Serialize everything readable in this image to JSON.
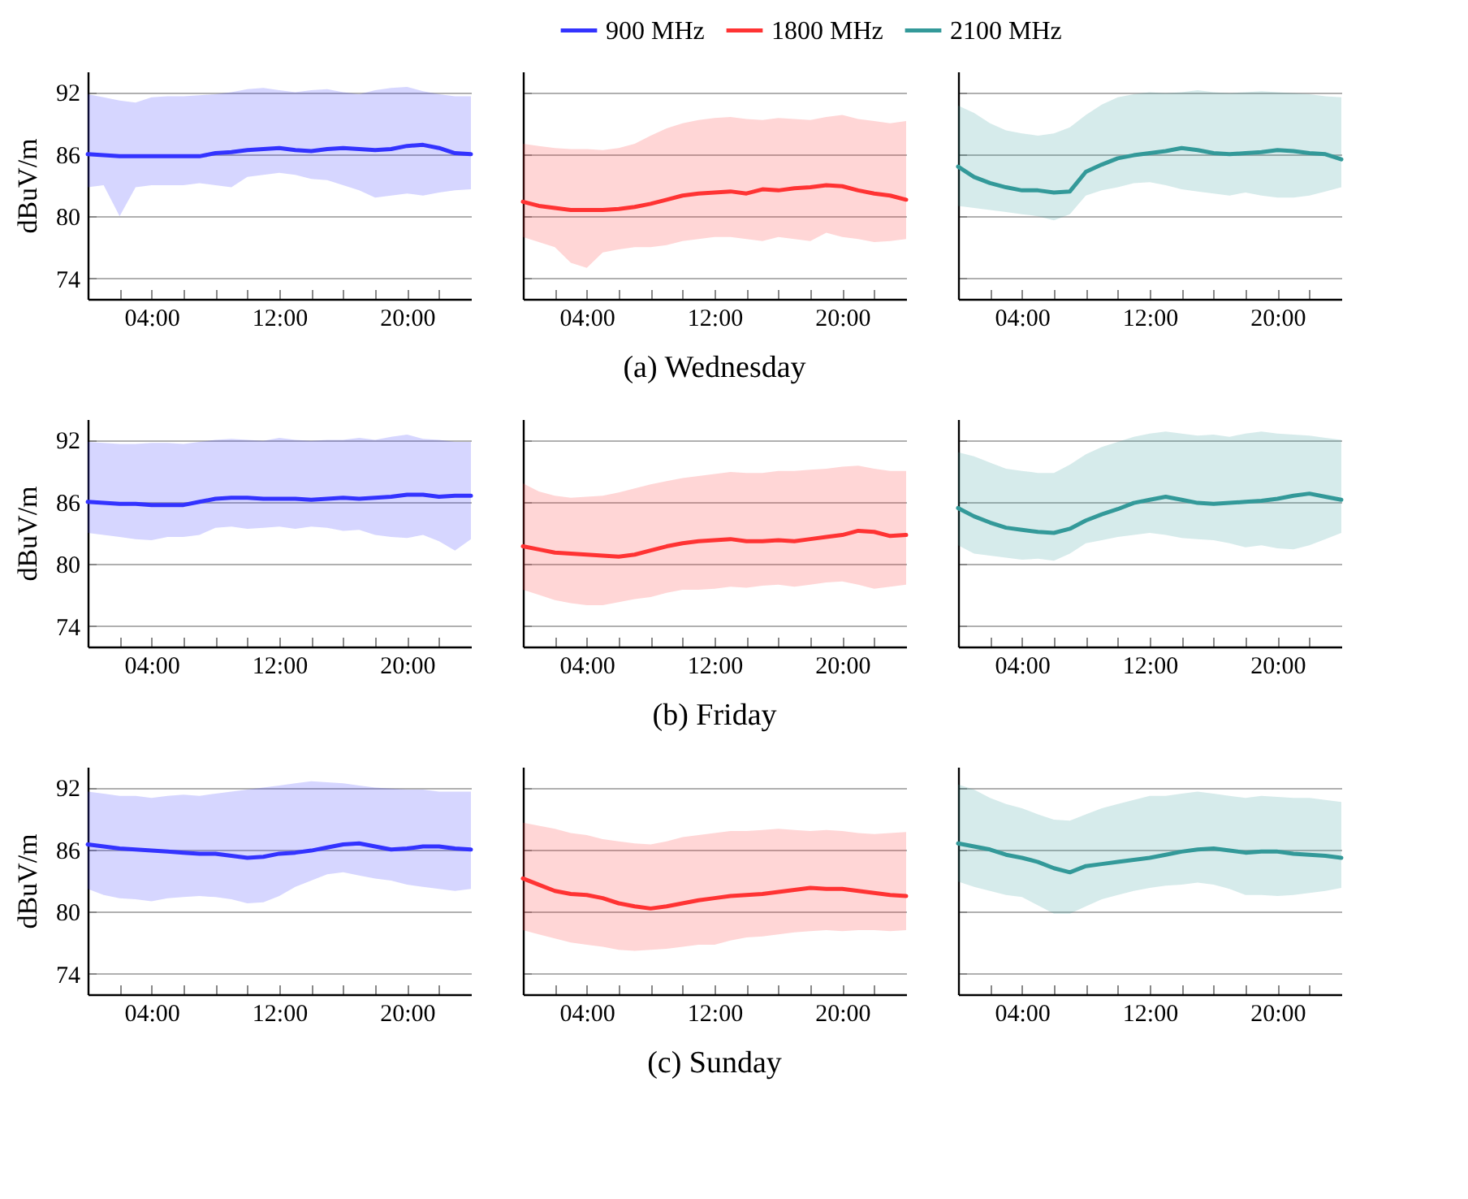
{
  "chart_data": [
    {
      "type": "line",
      "ylabel": "dBuV/m",
      "x": [
        0,
        1,
        2,
        3,
        4,
        5,
        6,
        7,
        8,
        9,
        10,
        11,
        12,
        13,
        14,
        15,
        16,
        17,
        18,
        19,
        20,
        21,
        22,
        23,
        24
      ],
      "xlim": [
        0,
        24
      ],
      "ylim": [
        72,
        94
      ],
      "yticks": [
        74,
        80,
        86,
        92
      ],
      "xticks": [
        {
          "value": 2,
          "label": null
        },
        {
          "value": 4,
          "label": "04:00"
        },
        {
          "value": 6,
          "label": null
        },
        {
          "value": 8,
          "label": null
        },
        {
          "value": 10,
          "label": null
        },
        {
          "value": 12,
          "label": "12:00"
        },
        {
          "value": 14,
          "label": null
        },
        {
          "value": 16,
          "label": null
        },
        {
          "value": 18,
          "label": null
        },
        {
          "value": 20,
          "label": "20:00"
        },
        {
          "value": 22,
          "label": null
        }
      ],
      "grid": "y",
      "series": [
        {
          "name": "900 MHz",
          "color": "#3333ff",
          "values": [
            86,
            85.9,
            85.8,
            85.8,
            85.8,
            85.8,
            85.8,
            85.8,
            86.1,
            86.2,
            86.4,
            86.5,
            86.6,
            86.4,
            86.3,
            86.5,
            86.6,
            86.5,
            86.4,
            86.5,
            86.8,
            86.9,
            86.6,
            86.1,
            86
          ],
          "upper": [
            91.8,
            91.5,
            91.2,
            91,
            91.5,
            91.6,
            91.6,
            91.7,
            91.8,
            92,
            92.3,
            92.4,
            92.2,
            92,
            92.2,
            92.3,
            92,
            91.8,
            92.2,
            92.4,
            92.5,
            92.1,
            91.8,
            91.6,
            91.6
          ],
          "lower": [
            82.8,
            83,
            80,
            82.8,
            83,
            83,
            83,
            83.2,
            83,
            82.8,
            83.8,
            84,
            84.2,
            84,
            83.6,
            83.5,
            83,
            82.5,
            81.8,
            82,
            82.2,
            82,
            82.3,
            82.5,
            82.6
          ]
        }
      ]
    },
    {
      "type": "line",
      "title": "(a) Wednesday",
      "legend": "top",
      "tick_labels": "x",
      "x": [
        0,
        1,
        2,
        3,
        4,
        5,
        6,
        7,
        8,
        9,
        10,
        11,
        12,
        13,
        14,
        15,
        16,
        17,
        18,
        19,
        20,
        21,
        22,
        23,
        24
      ],
      "xlim": [
        0,
        24
      ],
      "ylim": [
        72,
        94
      ],
      "yticks": [
        74,
        80,
        86,
        92
      ],
      "xticks": [
        {
          "value": 2,
          "label": null
        },
        {
          "value": 4,
          "label": "04:00"
        },
        {
          "value": 6,
          "label": null
        },
        {
          "value": 8,
          "label": null
        },
        {
          "value": 10,
          "label": null
        },
        {
          "value": 12,
          "label": "12:00"
        },
        {
          "value": 14,
          "label": null
        },
        {
          "value": 16,
          "label": null
        },
        {
          "value": 18,
          "label": null
        },
        {
          "value": 20,
          "label": "20:00"
        },
        {
          "value": 22,
          "label": null
        }
      ],
      "grid": "y",
      "series": [
        {
          "name": "1800 MHz",
          "color": "#ff3333",
          "values": [
            81.4,
            81,
            80.8,
            80.6,
            80.6,
            80.6,
            80.7,
            80.9,
            81.2,
            81.6,
            82,
            82.2,
            82.3,
            82.4,
            82.2,
            82.6,
            82.5,
            82.7,
            82.8,
            83,
            82.9,
            82.5,
            82.2,
            82,
            81.6
          ],
          "upper": [
            87,
            86.8,
            86.6,
            86.5,
            86.5,
            86.4,
            86.6,
            87,
            87.8,
            88.5,
            89,
            89.3,
            89.5,
            89.6,
            89.4,
            89.3,
            89.5,
            89.4,
            89.3,
            89.6,
            89.8,
            89.4,
            89.2,
            89,
            89.2
          ],
          "lower": [
            78,
            77.5,
            77,
            75.5,
            75,
            76.5,
            76.8,
            77,
            77,
            77.2,
            77.6,
            77.8,
            78,
            78,
            77.8,
            77.6,
            78,
            77.8,
            77.6,
            78.4,
            78,
            77.8,
            77.5,
            77.6,
            77.8
          ]
        }
      ]
    },
    {
      "type": "line",
      "tick_labels": "x",
      "x": [
        0,
        1,
        2,
        3,
        4,
        5,
        6,
        7,
        8,
        9,
        10,
        11,
        12,
        13,
        14,
        15,
        16,
        17,
        18,
        19,
        20,
        21,
        22,
        23,
        24
      ],
      "xlim": [
        0,
        24
      ],
      "ylim": [
        72,
        94
      ],
      "yticks": [
        74,
        80,
        86,
        92
      ],
      "xticks": [
        {
          "value": 2,
          "label": null
        },
        {
          "value": 4,
          "label": "04:00"
        },
        {
          "value": 6,
          "label": null
        },
        {
          "value": 8,
          "label": null
        },
        {
          "value": 10,
          "label": null
        },
        {
          "value": 12,
          "label": "12:00"
        },
        {
          "value": 14,
          "label": null
        },
        {
          "value": 16,
          "label": null
        },
        {
          "value": 18,
          "label": null
        },
        {
          "value": 20,
          "label": "20:00"
        },
        {
          "value": 22,
          "label": null
        }
      ],
      "grid": "y",
      "series": [
        {
          "name": "2100 MHz",
          "color": "#339999",
          "values": [
            84.8,
            83.8,
            83.2,
            82.8,
            82.5,
            82.5,
            82.3,
            82.4,
            84.3,
            85,
            85.6,
            85.9,
            86.1,
            86.3,
            86.6,
            86.4,
            86.1,
            86,
            86.1,
            86.2,
            86.4,
            86.3,
            86.1,
            86,
            85.5
          ],
          "upper": [
            90.7,
            90,
            89,
            88.3,
            88,
            87.8,
            88,
            88.6,
            89.8,
            90.8,
            91.5,
            91.8,
            92,
            91.9,
            92,
            92.2,
            92,
            91.9,
            92,
            92.1,
            92,
            91.9,
            91.8,
            91.6,
            91.5
          ],
          "lower": [
            81,
            80.8,
            80.6,
            80.4,
            80.2,
            80,
            79.6,
            80.2,
            82,
            82.5,
            82.8,
            83.2,
            83.3,
            83,
            82.6,
            82.4,
            82.2,
            82,
            82.3,
            82,
            81.8,
            81.8,
            82,
            82.4,
            82.8
          ]
        }
      ]
    },
    {
      "type": "line",
      "ylabel": "dBuV/m",
      "x": [
        0,
        1,
        2,
        3,
        4,
        5,
        6,
        7,
        8,
        9,
        10,
        11,
        12,
        13,
        14,
        15,
        16,
        17,
        18,
        19,
        20,
        21,
        22,
        23,
        24
      ],
      "xlim": [
        0,
        24
      ],
      "ylim": [
        72,
        94
      ],
      "yticks": [
        74,
        80,
        86,
        92
      ],
      "xticks": [
        {
          "value": 2,
          "label": null
        },
        {
          "value": 4,
          "label": "04:00"
        },
        {
          "value": 6,
          "label": null
        },
        {
          "value": 8,
          "label": null
        },
        {
          "value": 10,
          "label": null
        },
        {
          "value": 12,
          "label": "12:00"
        },
        {
          "value": 14,
          "label": null
        },
        {
          "value": 16,
          "label": null
        },
        {
          "value": 18,
          "label": null
        },
        {
          "value": 20,
          "label": "20:00"
        },
        {
          "value": 22,
          "label": null
        }
      ],
      "grid": "y",
      "series": [
        {
          "name": "900 MHz",
          "color": "#3333ff",
          "values": [
            86,
            85.9,
            85.8,
            85.8,
            85.7,
            85.7,
            85.7,
            86,
            86.3,
            86.4,
            86.4,
            86.3,
            86.3,
            86.3,
            86.2,
            86.3,
            86.4,
            86.3,
            86.4,
            86.5,
            86.7,
            86.7,
            86.5,
            86.6,
            86.6
          ],
          "upper": [
            91.8,
            91.7,
            91.6,
            91.6,
            91.7,
            91.7,
            91.6,
            91.8,
            92,
            92.1,
            92,
            91.9,
            92.2,
            92,
            91.9,
            92,
            92,
            92.2,
            92,
            92.3,
            92.5,
            92.1,
            92,
            91.8,
            91.8
          ],
          "lower": [
            83,
            82.8,
            82.6,
            82.4,
            82.3,
            82.6,
            82.6,
            82.8,
            83.5,
            83.6,
            83.4,
            83.5,
            83.6,
            83.4,
            83.6,
            83.5,
            83.2,
            83.3,
            82.8,
            82.6,
            82.5,
            82.8,
            82.2,
            81.3,
            82.4
          ]
        }
      ]
    },
    {
      "type": "line",
      "title": "(b) Friday",
      "tick_labels": "x",
      "x": [
        0,
        1,
        2,
        3,
        4,
        5,
        6,
        7,
        8,
        9,
        10,
        11,
        12,
        13,
        14,
        15,
        16,
        17,
        18,
        19,
        20,
        21,
        22,
        23,
        24
      ],
      "xlim": [
        0,
        24
      ],
      "ylim": [
        72,
        94
      ],
      "yticks": [
        74,
        80,
        86,
        92
      ],
      "xticks": [
        {
          "value": 2,
          "label": null
        },
        {
          "value": 4,
          "label": "04:00"
        },
        {
          "value": 6,
          "label": null
        },
        {
          "value": 8,
          "label": null
        },
        {
          "value": 10,
          "label": null
        },
        {
          "value": 12,
          "label": "12:00"
        },
        {
          "value": 14,
          "label": null
        },
        {
          "value": 16,
          "label": null
        },
        {
          "value": 18,
          "label": null
        },
        {
          "value": 20,
          "label": "20:00"
        },
        {
          "value": 22,
          "label": null
        }
      ],
      "grid": "y",
      "series": [
        {
          "name": "1800 MHz",
          "color": "#ff3333",
          "values": [
            81.7,
            81.4,
            81.1,
            81,
            80.9,
            80.8,
            80.7,
            80.9,
            81.3,
            81.7,
            82,
            82.2,
            82.3,
            82.4,
            82.2,
            82.2,
            82.3,
            82.2,
            82.4,
            82.6,
            82.8,
            83.2,
            83.1,
            82.7,
            82.8
          ],
          "upper": [
            87.8,
            87,
            86.6,
            86.4,
            86.5,
            86.6,
            86.9,
            87.3,
            87.7,
            88,
            88.3,
            88.5,
            88.7,
            88.9,
            88.8,
            88.8,
            89,
            89,
            89.1,
            89.2,
            89.4,
            89.5,
            89.2,
            89,
            89
          ],
          "lower": [
            77.5,
            77,
            76.5,
            76.2,
            76,
            76,
            76.3,
            76.6,
            76.8,
            77.2,
            77.5,
            77.5,
            77.6,
            77.8,
            77.7,
            77.9,
            78,
            77.8,
            78,
            78.2,
            78.3,
            78,
            77.6,
            77.8,
            78
          ]
        }
      ]
    },
    {
      "type": "line",
      "tick_labels": "x",
      "x": [
        0,
        1,
        2,
        3,
        4,
        5,
        6,
        7,
        8,
        9,
        10,
        11,
        12,
        13,
        14,
        15,
        16,
        17,
        18,
        19,
        20,
        21,
        22,
        23,
        24
      ],
      "xlim": [
        0,
        24
      ],
      "ylim": [
        72,
        94
      ],
      "yticks": [
        74,
        80,
        86,
        92
      ],
      "xticks": [
        {
          "value": 2,
          "label": null
        },
        {
          "value": 4,
          "label": "04:00"
        },
        {
          "value": 6,
          "label": null
        },
        {
          "value": 8,
          "label": null
        },
        {
          "value": 10,
          "label": null
        },
        {
          "value": 12,
          "label": "12:00"
        },
        {
          "value": 14,
          "label": null
        },
        {
          "value": 16,
          "label": null
        },
        {
          "value": 18,
          "label": null
        },
        {
          "value": 20,
          "label": "20:00"
        },
        {
          "value": 22,
          "label": null
        }
      ],
      "grid": "y",
      "series": [
        {
          "name": "2100 MHz",
          "color": "#339999",
          "values": [
            85.4,
            84.6,
            84,
            83.5,
            83.3,
            83.1,
            83,
            83.4,
            84.2,
            84.8,
            85.3,
            85.9,
            86.2,
            86.5,
            86.2,
            85.9,
            85.8,
            85.9,
            86,
            86.1,
            86.3,
            86.6,
            86.8,
            86.5,
            86.2
          ],
          "upper": [
            90.8,
            90.4,
            89.8,
            89.2,
            89,
            88.8,
            88.8,
            89.6,
            90.6,
            91.3,
            91.8,
            92.3,
            92.6,
            92.8,
            92.6,
            92.4,
            92.5,
            92.3,
            92.6,
            92.8,
            92.6,
            92.5,
            92.4,
            92.2,
            92
          ],
          "lower": [
            81.8,
            81,
            80.8,
            80.6,
            80.4,
            80.5,
            80.3,
            81,
            82,
            82.3,
            82.6,
            82.8,
            83,
            82.8,
            82.5,
            82.4,
            82.3,
            82,
            81.6,
            81.8,
            81.5,
            81.4,
            81.8,
            82.4,
            83
          ]
        }
      ]
    },
    {
      "type": "line",
      "ylabel": "dBuV/m",
      "x": [
        0,
        1,
        2,
        3,
        4,
        5,
        6,
        7,
        8,
        9,
        10,
        11,
        12,
        13,
        14,
        15,
        16,
        17,
        18,
        19,
        20,
        21,
        22,
        23,
        24
      ],
      "xlim": [
        0,
        24
      ],
      "ylim": [
        72,
        94
      ],
      "yticks": [
        74,
        80,
        86,
        92
      ],
      "xticks": [
        {
          "value": 2,
          "label": null
        },
        {
          "value": 4,
          "label": "04:00"
        },
        {
          "value": 6,
          "label": null
        },
        {
          "value": 8,
          "label": null
        },
        {
          "value": 10,
          "label": null
        },
        {
          "value": 12,
          "label": "12:00"
        },
        {
          "value": 14,
          "label": null
        },
        {
          "value": 16,
          "label": null
        },
        {
          "value": 18,
          "label": null
        },
        {
          "value": 20,
          "label": "20:00"
        },
        {
          "value": 22,
          "label": null
        }
      ],
      "grid": "y",
      "series": [
        {
          "name": "900 MHz",
          "color": "#3333ff",
          "values": [
            86.5,
            86.3,
            86.1,
            86,
            85.9,
            85.8,
            85.7,
            85.6,
            85.6,
            85.4,
            85.2,
            85.3,
            85.6,
            85.7,
            85.9,
            86.2,
            86.5,
            86.6,
            86.3,
            86,
            86.1,
            86.3,
            86.3,
            86.1,
            86
          ],
          "upper": [
            91.6,
            91.4,
            91.2,
            91.2,
            91,
            91.2,
            91.3,
            91.2,
            91.4,
            91.6,
            91.8,
            92,
            92.2,
            92.4,
            92.6,
            92.5,
            92.4,
            92.2,
            92,
            91.9,
            91.8,
            91.8,
            91.6,
            91.6,
            91.6
          ],
          "lower": [
            82.2,
            81.6,
            81.3,
            81.2,
            81,
            81.3,
            81.4,
            81.5,
            81.4,
            81.2,
            80.8,
            80.9,
            81.5,
            82.4,
            83,
            83.6,
            83.8,
            83.5,
            83.2,
            83,
            82.6,
            82.4,
            82.2,
            82,
            82.2
          ]
        }
      ]
    },
    {
      "type": "line",
      "title": "(c) Sunday",
      "tick_labels": "x",
      "x": [
        0,
        1,
        2,
        3,
        4,
        5,
        6,
        7,
        8,
        9,
        10,
        11,
        12,
        13,
        14,
        15,
        16,
        17,
        18,
        19,
        20,
        21,
        22,
        23,
        24
      ],
      "xlim": [
        0,
        24
      ],
      "ylim": [
        72,
        94
      ],
      "yticks": [
        74,
        80,
        86,
        92
      ],
      "xticks": [
        {
          "value": 2,
          "label": null
        },
        {
          "value": 4,
          "label": "04:00"
        },
        {
          "value": 6,
          "label": null
        },
        {
          "value": 8,
          "label": null
        },
        {
          "value": 10,
          "label": null
        },
        {
          "value": 12,
          "label": "12:00"
        },
        {
          "value": 14,
          "label": null
        },
        {
          "value": 16,
          "label": null
        },
        {
          "value": 18,
          "label": null
        },
        {
          "value": 20,
          "label": "20:00"
        },
        {
          "value": 22,
          "label": null
        }
      ],
      "grid": "y",
      "series": [
        {
          "name": "1800 MHz",
          "color": "#ff3333",
          "values": [
            83.2,
            82.6,
            82,
            81.7,
            81.6,
            81.3,
            80.8,
            80.5,
            80.3,
            80.5,
            80.8,
            81.1,
            81.3,
            81.5,
            81.6,
            81.7,
            81.9,
            82.1,
            82.3,
            82.2,
            82.2,
            82,
            81.8,
            81.6,
            81.5
          ],
          "upper": [
            88.6,
            88.3,
            88,
            87.6,
            87.4,
            87,
            86.8,
            86.6,
            86.5,
            86.8,
            87.2,
            87.4,
            87.6,
            87.8,
            87.8,
            87.9,
            88,
            87.9,
            87.8,
            87.9,
            87.8,
            87.6,
            87.5,
            87.6,
            87.7
          ],
          "lower": [
            78.2,
            77.8,
            77.4,
            77,
            76.8,
            76.6,
            76.3,
            76.2,
            76.3,
            76.4,
            76.6,
            76.8,
            76.8,
            77.2,
            77.5,
            77.6,
            77.8,
            78,
            78.1,
            78.2,
            78.1,
            78.2,
            78.2,
            78.1,
            78.2
          ]
        }
      ]
    },
    {
      "type": "line",
      "tick_labels": "x",
      "x": [
        0,
        1,
        2,
        3,
        4,
        5,
        6,
        7,
        8,
        9,
        10,
        11,
        12,
        13,
        14,
        15,
        16,
        17,
        18,
        19,
        20,
        21,
        22,
        23,
        24
      ],
      "xlim": [
        0,
        24
      ],
      "ylim": [
        72,
        94
      ],
      "yticks": [
        74,
        80,
        86,
        92
      ],
      "xticks": [
        {
          "value": 2,
          "label": null
        },
        {
          "value": 4,
          "label": "04:00"
        },
        {
          "value": 6,
          "label": null
        },
        {
          "value": 8,
          "label": null
        },
        {
          "value": 10,
          "label": null
        },
        {
          "value": 12,
          "label": "12:00"
        },
        {
          "value": 14,
          "label": null
        },
        {
          "value": 16,
          "label": null
        },
        {
          "value": 18,
          "label": null
        },
        {
          "value": 20,
          "label": "20:00"
        },
        {
          "value": 22,
          "label": null
        }
      ],
      "grid": "y",
      "series": [
        {
          "name": "2100 MHz",
          "color": "#339999",
          "values": [
            86.6,
            86.3,
            86,
            85.5,
            85.2,
            84.8,
            84.2,
            83.8,
            84.4,
            84.6,
            84.8,
            85,
            85.2,
            85.5,
            85.8,
            86,
            86.1,
            85.9,
            85.7,
            85.8,
            85.8,
            85.6,
            85.5,
            85.4,
            85.2
          ],
          "upper": [
            92.3,
            91.8,
            91,
            90.4,
            90,
            89.4,
            88.9,
            88.8,
            89.4,
            90,
            90.4,
            90.8,
            91.2,
            91.2,
            91.4,
            91.6,
            91.4,
            91.2,
            91,
            91.2,
            91.1,
            91,
            91,
            90.8,
            90.6
          ],
          "lower": [
            82.9,
            82.4,
            82,
            81.6,
            81.4,
            80.6,
            79.8,
            79.8,
            80.5,
            81.2,
            81.6,
            82,
            82.3,
            82.5,
            82.6,
            82.8,
            82.6,
            82.2,
            81.6,
            81.6,
            81.5,
            81.6,
            81.8,
            82,
            82.3
          ]
        }
      ]
    }
  ]
}
